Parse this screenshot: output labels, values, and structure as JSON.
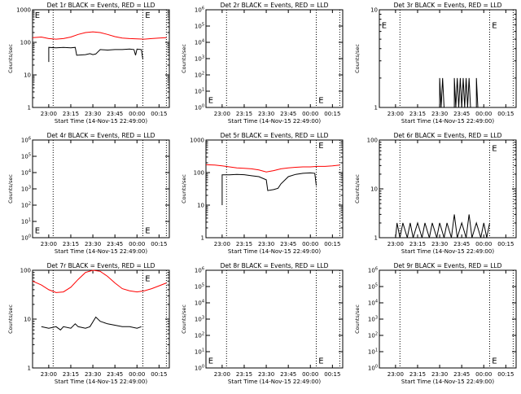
{
  "colors": {
    "events": "#000000",
    "lld": "#ff0000",
    "axis": "#000000",
    "background": "#ffffff"
  },
  "chart_data": [
    {
      "type": "line",
      "title": "Det 1r BLACK = Events, RED = LLD",
      "xlabel": "Start Time (14-Nov-15 22:49:00)",
      "ylabel": "Counts/sec",
      "xticks": [
        "23:00",
        "23:15",
        "23:30",
        "23:45",
        "00:00",
        "00:15"
      ],
      "xlim": [
        "22:49",
        "00:22"
      ],
      "yscale": "log",
      "ylim": [
        1,
        1000
      ],
      "yticks": [
        "1",
        "10",
        "100",
        "1000"
      ],
      "vlines": [
        "23:03",
        "00:04",
        "00:20"
      ],
      "annotations": [
        {
          "text": "E",
          "x": "22:50",
          "y": 700
        },
        {
          "text": "E",
          "x": "00:05",
          "y": 700
        }
      ],
      "series": [
        {
          "color": "red",
          "points": [
            [
              "22:49",
              140
            ],
            [
              "22:55",
              145
            ],
            [
              "23:00",
              130
            ],
            [
              "23:05",
              125
            ],
            [
              "23:10",
              130
            ],
            [
              "23:15",
              145
            ],
            [
              "23:20",
              175
            ],
            [
              "23:25",
              200
            ],
            [
              "23:30",
              210
            ],
            [
              "23:35",
              200
            ],
            [
              "23:40",
              175
            ],
            [
              "23:45",
              150
            ],
            [
              "23:50",
              135
            ],
            [
              "23:55",
              130
            ],
            [
              "00:00",
              128
            ],
            [
              "00:05",
              125
            ],
            [
              "00:10",
              130
            ],
            [
              "00:15",
              135
            ],
            [
              "00:20",
              140
            ]
          ]
        },
        {
          "color": "black",
          "points": [
            [
              "23:00",
              25
            ],
            [
              "23:00",
              70
            ],
            [
              "23:05",
              68
            ],
            [
              "23:10",
              70
            ],
            [
              "23:15",
              68
            ],
            [
              "23:18",
              70
            ],
            [
              "23:19",
              40
            ],
            [
              "23:25",
              42
            ],
            [
              "23:28",
              45
            ],
            [
              "23:30",
              42
            ],
            [
              "23:32",
              44
            ],
            [
              "23:35",
              60
            ],
            [
              "23:40",
              58
            ],
            [
              "23:45",
              60
            ],
            [
              "23:50",
              60
            ],
            [
              "23:55",
              62
            ],
            [
              "23:58",
              60
            ],
            [
              "23:59",
              40
            ],
            [
              "00:00",
              62
            ],
            [
              "00:03",
              60
            ],
            [
              "00:04",
              30
            ]
          ]
        }
      ]
    },
    {
      "type": "line",
      "title": "Det 2r BLACK = Events, RED = LLD",
      "xlabel": "Start Time (14-Nov-15 22:49:00)",
      "ylabel": "Counts/sec",
      "xticks": [
        "23:00",
        "23:15",
        "23:30",
        "23:45",
        "00:00",
        "00:15"
      ],
      "xlim": [
        "22:49",
        "00:22"
      ],
      "yscale": "log",
      "ylim": [
        1,
        1000000
      ],
      "yticks": [
        "10^0",
        "10^1",
        "10^2",
        "10^3",
        "10^4",
        "10^5",
        "10^6"
      ],
      "vlines": [
        "23:03",
        "00:04",
        "00:20"
      ],
      "annotations": [
        {
          "text": "E",
          "x": "22:50",
          "y": 3
        },
        {
          "text": "E",
          "x": "00:05",
          "y": 3
        }
      ],
      "series": []
    },
    {
      "type": "line",
      "title": "Det 3r BLACK = Events, RED = LLD",
      "xlabel": "Start Time (14-Nov-15 22:49:00)",
      "ylabel": "Counts/sec",
      "xticks": [
        "23:00",
        "23:15",
        "23:30",
        "23:45",
        "00:00",
        "00:15"
      ],
      "xlim": [
        "22:49",
        "00:22"
      ],
      "yscale": "log",
      "ylim": [
        1,
        10
      ],
      "yticks": [
        "1",
        "10"
      ],
      "vlines": [
        "23:03",
        "00:04",
        "00:20"
      ],
      "annotations": [
        {
          "text": "E",
          "x": "22:50",
          "y": 7
        },
        {
          "text": "E",
          "x": "00:05",
          "y": 7
        }
      ],
      "series": [
        {
          "color": "black",
          "points": [
            [
              "23:30",
              1
            ],
            [
              "23:30",
              2
            ],
            [
              "23:31",
              1
            ],
            [
              "23:32",
              2
            ],
            [
              "23:33",
              1
            ],
            [
              "23:40",
              1
            ],
            [
              "23:40",
              2
            ],
            [
              "23:41",
              1
            ],
            [
              "23:42",
              2
            ],
            [
              "23:43",
              1
            ],
            [
              "23:44",
              2
            ],
            [
              "23:45",
              1
            ],
            [
              "23:46",
              2
            ],
            [
              "23:47",
              1
            ],
            [
              "23:48",
              2
            ],
            [
              "23:49",
              1
            ],
            [
              "23:50",
              2
            ],
            [
              "23:51",
              1
            ],
            [
              "23:55",
              1
            ],
            [
              "23:55",
              2
            ],
            [
              "23:56",
              1
            ]
          ]
        }
      ]
    },
    {
      "type": "line",
      "title": "Det 4r BLACK = Events, RED = LLD",
      "xlabel": "Start Time (14-Nov-15 22:49:00)",
      "ylabel": "Counts/sec",
      "xticks": [
        "23:00",
        "23:15",
        "23:30",
        "23:45",
        "00:00",
        "00:15"
      ],
      "xlim": [
        "22:49",
        "00:22"
      ],
      "yscale": "log",
      "ylim": [
        1,
        1000000
      ],
      "yticks": [
        "10^0",
        "10^1",
        "10^2",
        "10^3",
        "10^4",
        "10^5",
        "10^6"
      ],
      "vlines": [
        "23:03",
        "00:04",
        "00:20"
      ],
      "annotations": [
        {
          "text": "E",
          "x": "22:50",
          "y": 3
        },
        {
          "text": "E",
          "x": "00:05",
          "y": 3
        }
      ],
      "series": []
    },
    {
      "type": "line",
      "title": "Det 5r BLACK = Events, RED = LLD",
      "xlabel": "Start Time (14-Nov-15 22:49:00)",
      "ylabel": "Counts/sec",
      "xticks": [
        "23:00",
        "23:15",
        "23:30",
        "23:45",
        "00:00",
        "00:15"
      ],
      "xlim": [
        "22:49",
        "00:22"
      ],
      "yscale": "log",
      "ylim": [
        1,
        1000
      ],
      "yticks": [
        "1",
        "10",
        "100",
        "1000"
      ],
      "vlines": [
        "23:03",
        "00:04",
        "00:20"
      ],
      "annotations": [
        {
          "text": "E",
          "x": "00:05",
          "y": 700
        }
      ],
      "series": [
        {
          "color": "red",
          "points": [
            [
              "22:49",
              175
            ],
            [
              "22:55",
              170
            ],
            [
              "23:00",
              160
            ],
            [
              "23:05",
              150
            ],
            [
              "23:10",
              140
            ],
            [
              "23:15",
              135
            ],
            [
              "23:20",
              130
            ],
            [
              "23:25",
              120
            ],
            [
              "23:30",
              105
            ],
            [
              "23:35",
              115
            ],
            [
              "23:40",
              130
            ],
            [
              "23:45",
              140
            ],
            [
              "23:50",
              145
            ],
            [
              "23:55",
              150
            ],
            [
              "00:00",
              150
            ],
            [
              "00:05",
              155
            ],
            [
              "00:10",
              155
            ],
            [
              "00:15",
              160
            ],
            [
              "00:20",
              170
            ]
          ]
        },
        {
          "color": "black",
          "points": [
            [
              "23:00",
              10
            ],
            [
              "23:00",
              85
            ],
            [
              "23:05",
              85
            ],
            [
              "23:10",
              88
            ],
            [
              "23:15",
              86
            ],
            [
              "23:20",
              80
            ],
            [
              "23:25",
              75
            ],
            [
              "23:30",
              60
            ],
            [
              "23:31",
              28
            ],
            [
              "23:35",
              30
            ],
            [
              "23:38",
              33
            ],
            [
              "23:40",
              45
            ],
            [
              "23:45",
              75
            ],
            [
              "23:50",
              88
            ],
            [
              "23:55",
              95
            ],
            [
              "00:00",
              98
            ],
            [
              "00:03",
              95
            ],
            [
              "00:04",
              40
            ]
          ]
        }
      ]
    },
    {
      "type": "line",
      "title": "Det 6r BLACK = Events, RED = LLD",
      "xlabel": "Start Time (14-Nov-15 22:49:00)",
      "ylabel": "Counts/sec",
      "xticks": [
        "23:00",
        "23:15",
        "23:30",
        "23:45",
        "00:00",
        "00:15"
      ],
      "xlim": [
        "22:49",
        "00:22"
      ],
      "yscale": "log",
      "ylim": [
        1,
        100
      ],
      "yticks": [
        "1",
        "10",
        "100"
      ],
      "vlines": [
        "23:03",
        "00:04",
        "00:20"
      ],
      "annotations": [
        {
          "text": "E",
          "x": "00:05",
          "y": 70
        }
      ],
      "series": [
        {
          "color": "black",
          "points": [
            [
              "23:00",
              1
            ],
            [
              "23:01",
              2
            ],
            [
              "23:03",
              1
            ],
            [
              "23:05",
              2
            ],
            [
              "23:08",
              1
            ],
            [
              "23:10",
              2
            ],
            [
              "23:12",
              1
            ],
            [
              "23:15",
              2
            ],
            [
              "23:18",
              1
            ],
            [
              "23:20",
              2
            ],
            [
              "23:23",
              1
            ],
            [
              "23:25",
              2
            ],
            [
              "23:28",
              1
            ],
            [
              "23:30",
              2
            ],
            [
              "23:33",
              1
            ],
            [
              "23:35",
              2
            ],
            [
              "23:38",
              1
            ],
            [
              "23:40",
              3
            ],
            [
              "23:42",
              1
            ],
            [
              "23:45",
              2
            ],
            [
              "23:48",
              1
            ],
            [
              "23:50",
              3
            ],
            [
              "23:52",
              1
            ],
            [
              "23:55",
              2
            ],
            [
              "23:58",
              1
            ],
            [
              "00:00",
              2
            ],
            [
              "00:02",
              1
            ],
            [
              "00:04",
              2
            ]
          ]
        }
      ]
    },
    {
      "type": "line",
      "title": "Det 7r BLACK = Events, RED = LLD",
      "xlabel": "Start Time (14-Nov-15 22:49:00)",
      "ylabel": "Counts/sec",
      "xticks": [
        "23:00",
        "23:15",
        "23:30",
        "23:45",
        "00:00",
        "00:15"
      ],
      "xlim": [
        "22:49",
        "00:22"
      ],
      "yscale": "log",
      "ylim": [
        1,
        100
      ],
      "yticks": [
        "1",
        "10",
        "100"
      ],
      "vlines": [
        "23:03",
        "00:04",
        "00:20"
      ],
      "annotations": [
        {
          "text": "E",
          "x": "00:05",
          "y": 70
        }
      ],
      "series": [
        {
          "color": "red",
          "points": [
            [
              "22:49",
              60
            ],
            [
              "22:55",
              50
            ],
            [
              "23:00",
              40
            ],
            [
              "23:05",
              35
            ],
            [
              "23:10",
              36
            ],
            [
              "23:15",
              45
            ],
            [
              "23:20",
              65
            ],
            [
              "23:25",
              90
            ],
            [
              "23:30",
              100
            ],
            [
              "23:35",
              95
            ],
            [
              "23:40",
              75
            ],
            [
              "23:45",
              55
            ],
            [
              "23:50",
              42
            ],
            [
              "23:55",
              38
            ],
            [
              "00:00",
              36
            ],
            [
              "00:05",
              38
            ],
            [
              "00:10",
              42
            ],
            [
              "00:15",
              48
            ],
            [
              "00:20",
              55
            ]
          ]
        },
        {
          "color": "black",
          "points": [
            [
              "22:55",
              7
            ],
            [
              "23:00",
              6.5
            ],
            [
              "23:05",
              7
            ],
            [
              "23:08",
              6
            ],
            [
              "23:10",
              7
            ],
            [
              "23:15",
              6.5
            ],
            [
              "23:18",
              8
            ],
            [
              "23:20",
              7
            ],
            [
              "23:25",
              6.5
            ],
            [
              "23:28",
              7
            ],
            [
              "23:32",
              11
            ],
            [
              "23:35",
              9
            ],
            [
              "23:40",
              8
            ],
            [
              "23:45",
              7.5
            ],
            [
              "23:50",
              7
            ],
            [
              "23:55",
              7
            ],
            [
              "00:00",
              6.5
            ],
            [
              "00:03",
              7
            ]
          ]
        }
      ]
    },
    {
      "type": "line",
      "title": "Det 8r BLACK = Events, RED = LLD",
      "xlabel": "Start Time (14-Nov-15 22:49:00)",
      "ylabel": "Counts/sec",
      "xticks": [
        "23:00",
        "23:15",
        "23:30",
        "23:45",
        "00:00",
        "00:15"
      ],
      "xlim": [
        "22:49",
        "00:22"
      ],
      "yscale": "log",
      "ylim": [
        1,
        1000000
      ],
      "yticks": [
        "10^0",
        "10^1",
        "10^2",
        "10^3",
        "10^4",
        "10^5",
        "10^6"
      ],
      "vlines": [
        "23:03",
        "00:04",
        "00:20"
      ],
      "annotations": [
        {
          "text": "E",
          "x": "22:50",
          "y": 3
        },
        {
          "text": "E",
          "x": "00:05",
          "y": 3
        }
      ],
      "series": []
    },
    {
      "type": "line",
      "title": "Det 9r BLACK = Events, RED = LLD",
      "xlabel": "Start Time (14-Nov-15 22:49:00)",
      "ylabel": "Counts/sec",
      "xticks": [
        "23:00",
        "23:15",
        "23:30",
        "23:45",
        "00:00",
        "00:15"
      ],
      "xlim": [
        "22:49",
        "00:22"
      ],
      "yscale": "log",
      "ylim": [
        1,
        1000000
      ],
      "yticks": [
        "10^0",
        "10^1",
        "10^2",
        "10^3",
        "10^4",
        "10^5",
        "10^6"
      ],
      "vlines": [
        "23:03",
        "00:04",
        "00:20"
      ],
      "annotations": [
        {
          "text": "E",
          "x": "00:05",
          "y": 3
        }
      ],
      "series": []
    }
  ]
}
